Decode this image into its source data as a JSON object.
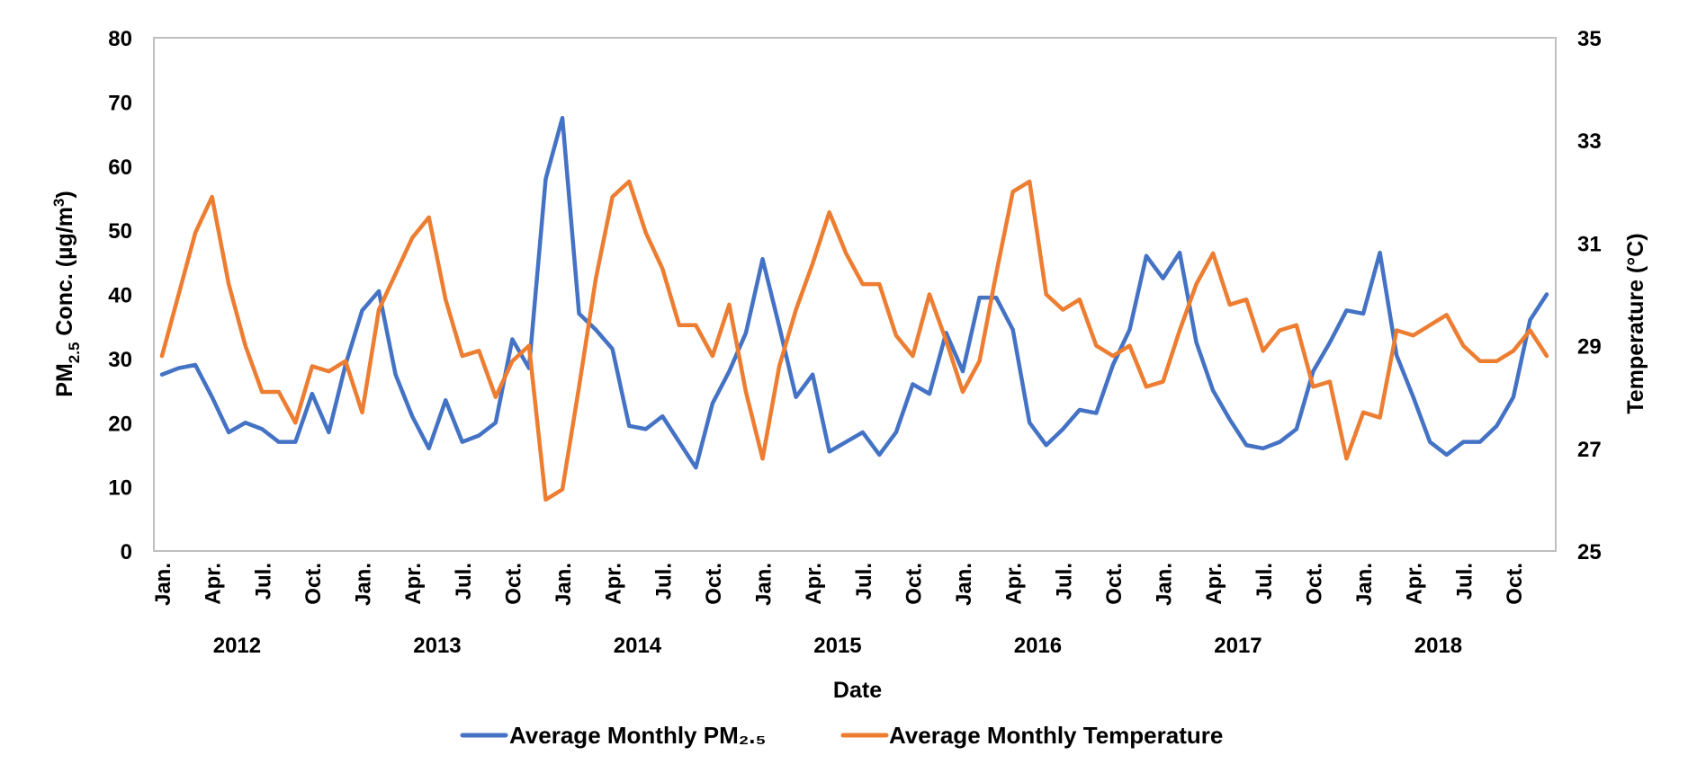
{
  "chart_data": {
    "type": "line",
    "xlabel": "Date",
    "ylabel_left": {
      "main": "PM",
      "sub": "2.5",
      "rest": " Conc. (µg/m",
      "sup": "3",
      "end": ")"
    },
    "ylabel_right": "Temperature (°C)",
    "ylim_left": [
      0,
      80
    ],
    "ylim_right": [
      25,
      35
    ],
    "yticks_left": [
      "0",
      "10",
      "20",
      "30",
      "40",
      "50",
      "60",
      "70",
      "80"
    ],
    "yticks_right": [
      "25",
      "27",
      "29",
      "31",
      "33",
      "35"
    ],
    "month_labels": [
      "Jan.",
      "Apr.",
      "Jul.",
      "Oct."
    ],
    "years": [
      "2012",
      "2013",
      "2014",
      "2015",
      "2016",
      "2017",
      "2018"
    ],
    "grid": false,
    "legend_position": "bottom",
    "series": [
      {
        "name": "Average Monthly PM₂.₅",
        "axis": "left",
        "color": "#4472C4",
        "values": [
          27.5,
          28.5,
          29,
          24,
          18.5,
          20,
          19,
          17,
          17,
          24.5,
          18.5,
          29,
          37.5,
          40.5,
          27.5,
          21,
          16,
          23.5,
          17,
          18,
          20,
          33,
          28.5,
          58,
          67.5,
          37,
          34.5,
          31.5,
          19.5,
          19,
          21,
          17,
          13,
          23,
          28,
          34,
          45.5,
          35,
          24,
          27.5,
          15.5,
          17,
          18.5,
          15,
          18.5,
          26,
          24.5,
          34,
          28,
          39.5,
          39.5,
          34.5,
          20,
          16.5,
          19,
          22,
          21.5,
          29,
          34.5,
          46,
          42.5,
          46.5,
          32.5,
          25,
          20.5,
          16.5,
          16,
          17,
          19,
          28,
          32.5,
          37.5,
          37,
          46.5,
          30.5,
          24,
          17,
          15,
          17,
          17,
          19.5,
          24,
          36,
          40
        ]
      },
      {
        "name": "Average Monthly Temperature",
        "axis": "right",
        "color": "#ED7D31",
        "values": [
          28.8,
          30.0,
          31.2,
          31.9,
          30.2,
          29.0,
          28.1,
          28.1,
          27.5,
          28.6,
          28.5,
          28.7,
          27.7,
          29.7,
          30.4,
          31.1,
          31.5,
          29.9,
          28.8,
          28.9,
          28.0,
          28.7,
          29.0,
          26.0,
          26.2,
          28.2,
          30.3,
          31.9,
          32.2,
          31.2,
          30.5,
          29.4,
          29.4,
          28.8,
          29.8,
          28.1,
          26.8,
          28.6,
          29.7,
          30.6,
          31.6,
          30.8,
          30.2,
          30.2,
          29.2,
          28.8,
          30.0,
          29.1,
          28.1,
          28.7,
          30.4,
          32.0,
          32.2,
          30.0,
          29.7,
          29.9,
          29.0,
          28.8,
          29.0,
          28.2,
          28.3,
          29.3,
          30.2,
          30.8,
          29.8,
          29.9,
          28.9,
          29.3,
          29.4,
          28.2,
          28.3,
          26.8,
          27.7,
          27.6,
          29.3,
          29.2,
          29.4,
          29.6,
          29.0,
          28.7,
          28.7,
          28.9,
          29.3,
          28.8
        ]
      }
    ]
  }
}
